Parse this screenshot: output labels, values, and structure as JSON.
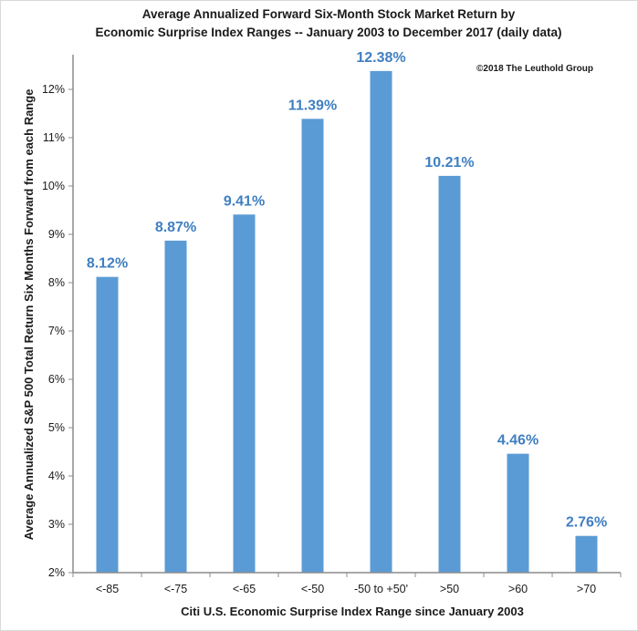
{
  "chart_data": {
    "type": "bar",
    "title": [
      "Average Annualized Forward Six-Month Stock Market Return by",
      "Economic Surprise Index Ranges -- January 2003 to December 2017 (daily data)"
    ],
    "copyright": "©2018 The Leuthold Group",
    "xlabel": "Citi U.S. Economic Surprise Index Range since January 2003",
    "ylabel": "Average Annualized S&P 500 Total Return Six Months Forward from each Range",
    "categories": [
      "<-85",
      "<-75",
      "<-65",
      "<-50",
      "-50 to +50'",
      ">50",
      ">60",
      ">70"
    ],
    "values": [
      8.12,
      8.87,
      9.41,
      11.39,
      12.38,
      10.21,
      4.46,
      2.76
    ],
    "data_labels": [
      "8.12%",
      "8.87%",
      "9.41%",
      "11.39%",
      "12.38%",
      "10.21%",
      "4.46%",
      "2.76%"
    ],
    "yticks": [
      2,
      3,
      4,
      5,
      6,
      7,
      8,
      9,
      10,
      11,
      12
    ],
    "ytick_labels": [
      "2%",
      "3%",
      "4%",
      "5%",
      "6%",
      "7%",
      "8%",
      "9%",
      "10%",
      "11%",
      "12%"
    ],
    "ylim": [
      2,
      12.6
    ],
    "grid": false,
    "legend": "none",
    "colors": {
      "bar": "#5b9bd5",
      "label": "#3f7fc1",
      "axis": "#8c8c8c"
    }
  }
}
